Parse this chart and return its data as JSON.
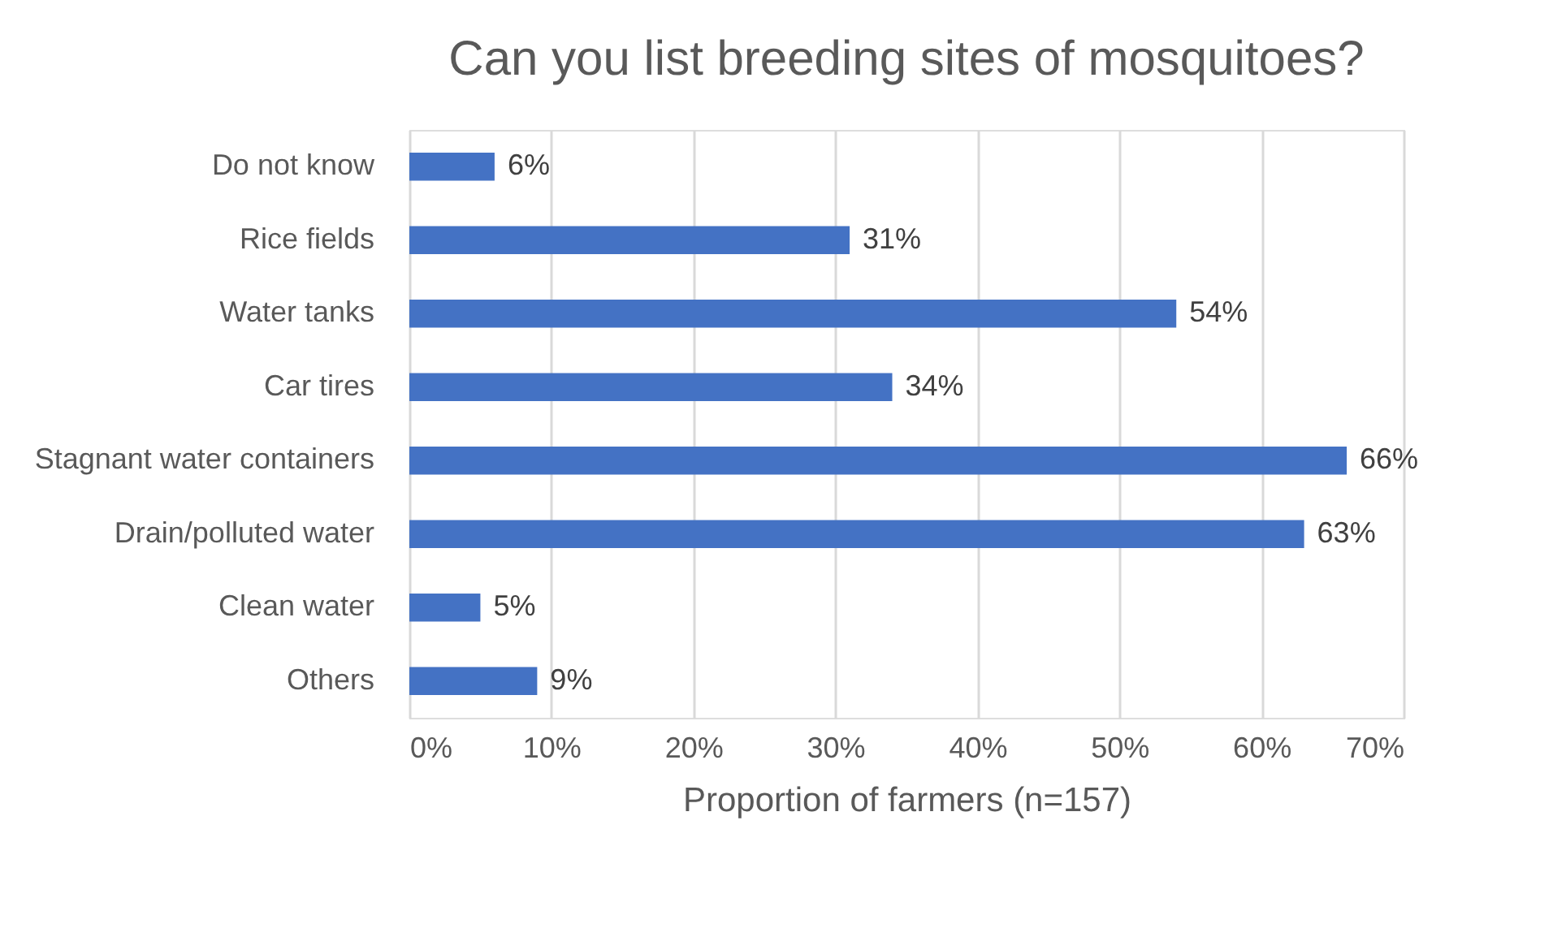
{
  "chart_data": {
    "type": "bar",
    "orientation": "horizontal",
    "title": "Can you list breeding sites of mosquitoes?",
    "xlabel": "Proportion of farmers (n=157)",
    "categories": [
      "Do not know",
      "Rice fields",
      "Water tanks",
      "Car tires",
      "Stagnant water containers",
      "Drain/polluted water",
      "Clean water",
      "Others"
    ],
    "values": [
      6,
      31,
      54,
      34,
      66,
      63,
      5,
      9
    ],
    "value_labels": [
      "6%",
      "31%",
      "54%",
      "34%",
      "66%",
      "63%",
      "5%",
      "9%"
    ],
    "color": "#4472c4",
    "xlim": [
      0,
      70
    ],
    "xticks": [
      {
        "value": 0,
        "label": "0%"
      },
      {
        "value": 10,
        "label": "10%"
      },
      {
        "value": 20,
        "label": "20%"
      },
      {
        "value": 30,
        "label": "30%"
      },
      {
        "value": 40,
        "label": "40%"
      },
      {
        "value": 50,
        "label": "50%"
      },
      {
        "value": 60,
        "label": "60%"
      },
      {
        "value": 70,
        "label": "70%"
      }
    ],
    "grid": "x"
  }
}
